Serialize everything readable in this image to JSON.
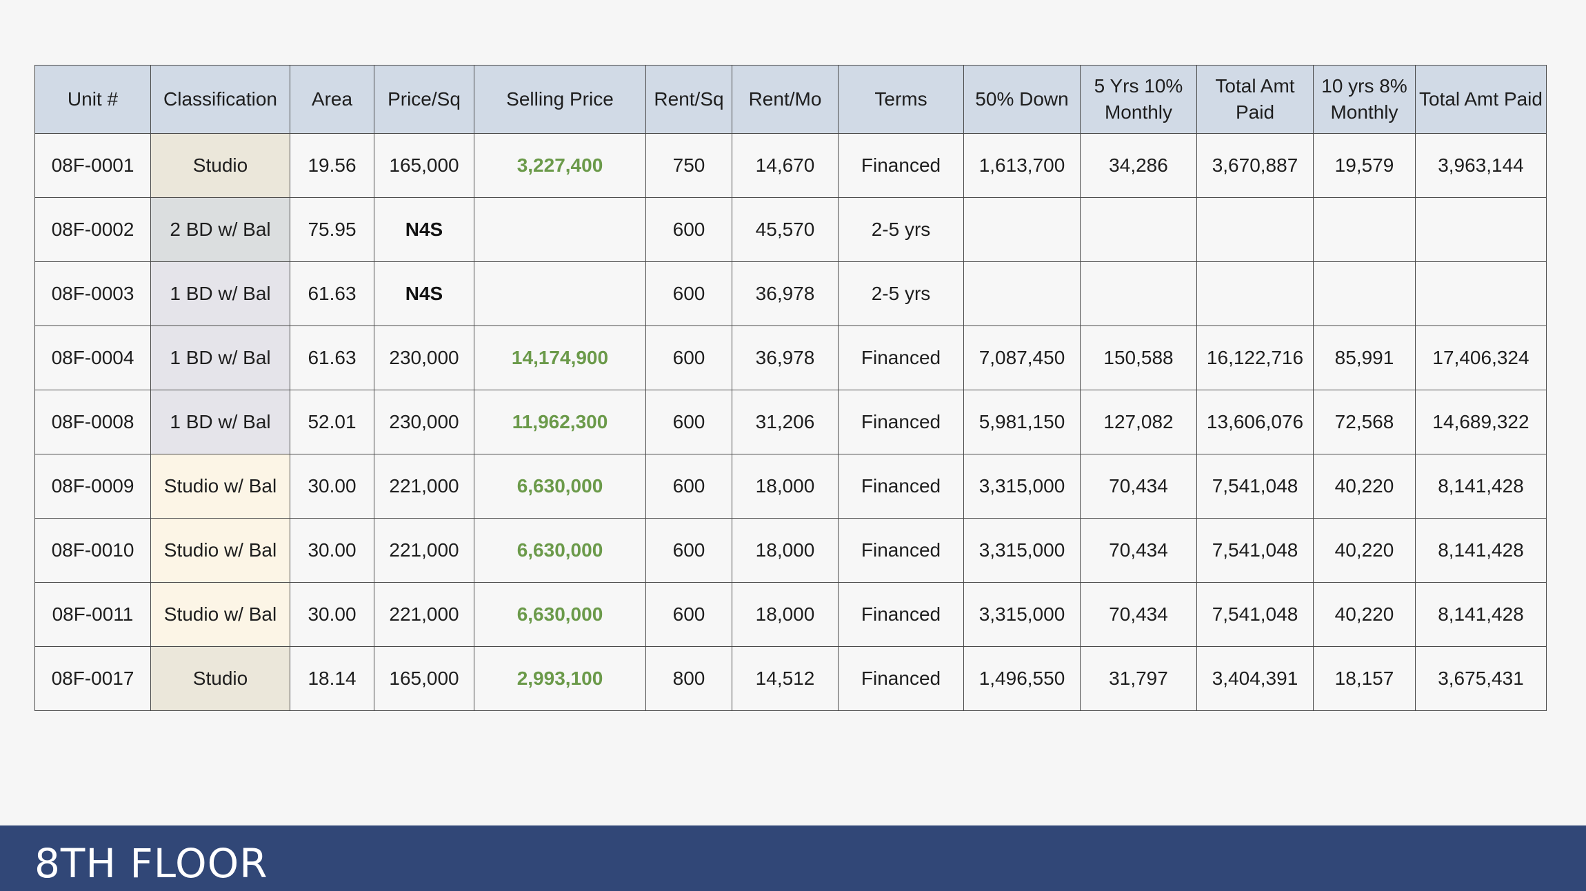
{
  "table": {
    "headers": [
      "Unit #",
      "Classification",
      "Area",
      "Price/Sq",
      "Selling Price",
      "Rent/Sq",
      "Rent/Mo",
      "Terms",
      "50% Down",
      "5 Yrs 10% Monthly",
      "Total Amt Paid",
      "10 yrs 8% Monthly",
      "Total Amt Paid"
    ],
    "rows": [
      {
        "cells": [
          "08F-0001",
          "Studio",
          "19.56",
          "165,000",
          "3,227,400",
          "750",
          "14,670",
          "Financed",
          "1,613,700",
          "34,286",
          "3,670,887",
          "19,579",
          "3,963,144"
        ],
        "classification_color": "#ebe7da",
        "n4s": false
      },
      {
        "cells": [
          "08F-0002",
          "2 BD w/ Bal",
          "75.95",
          "N4S",
          "",
          "600",
          "45,570",
          "2-5 yrs",
          "",
          "",
          "",
          "",
          ""
        ],
        "classification_color": "#dbdedf",
        "n4s": true
      },
      {
        "cells": [
          "08F-0003",
          "1 BD w/ Bal",
          "61.63",
          "N4S",
          "",
          "600",
          "36,978",
          "2-5 yrs",
          "",
          "",
          "",
          "",
          ""
        ],
        "classification_color": "#e5e4ea",
        "n4s": true
      },
      {
        "cells": [
          "08F-0004",
          "1 BD w/ Bal",
          "61.63",
          "230,000",
          "14,174,900",
          "600",
          "36,978",
          "Financed",
          "7,087,450",
          "150,588",
          "16,122,716",
          "85,991",
          "17,406,324"
        ],
        "classification_color": "#e5e4ea",
        "n4s": false
      },
      {
        "cells": [
          "08F-0008",
          "1 BD w/ Bal",
          "52.01",
          "230,000",
          "11,962,300",
          "600",
          "31,206",
          "Financed",
          "5,981,150",
          "127,082",
          "13,606,076",
          "72,568",
          "14,689,322"
        ],
        "classification_color": "#e5e4ea",
        "n4s": false
      },
      {
        "cells": [
          "08F-0009",
          "Studio w/ Bal",
          "30.00",
          "221,000",
          "6,630,000",
          "600",
          "18,000",
          "Financed",
          "3,315,000",
          "70,434",
          "7,541,048",
          "40,220",
          "8,141,428"
        ],
        "classification_color": "#fcf5e6",
        "n4s": false
      },
      {
        "cells": [
          "08F-0010",
          "Studio w/ Bal",
          "30.00",
          "221,000",
          "6,630,000",
          "600",
          "18,000",
          "Financed",
          "3,315,000",
          "70,434",
          "7,541,048",
          "40,220",
          "8,141,428"
        ],
        "classification_color": "#fcf5e6",
        "n4s": false
      },
      {
        "cells": [
          "08F-0011",
          "Studio w/ Bal",
          "30.00",
          "221,000",
          "6,630,000",
          "600",
          "18,000",
          "Financed",
          "3,315,000",
          "70,434",
          "7,541,048",
          "40,220",
          "8,141,428"
        ],
        "classification_color": "#fcf5e6",
        "n4s": false
      },
      {
        "cells": [
          "08F-0017",
          "Studio",
          "18.14",
          "165,000",
          "2,993,100",
          "800",
          "14,512",
          "Financed",
          "1,496,550",
          "31,797",
          "3,404,391",
          "18,157",
          "3,675,431"
        ],
        "classification_color": "#ebe7da",
        "n4s": false
      }
    ]
  },
  "colors": {
    "header_bg": "#d1dae6",
    "selling_price": "#6b9a4a",
    "footer_bg": "#314777"
  },
  "footer": {
    "title": "8TH FLOOR"
  }
}
